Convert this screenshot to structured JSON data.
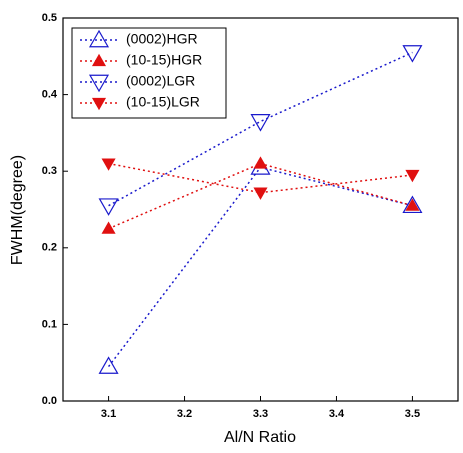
{
  "chart_data": {
    "type": "line",
    "x_label": "Al/N Ratio",
    "y_label": "FWHM(degree)",
    "x": [
      3.1,
      3.3,
      3.5
    ],
    "xlim": [
      3.04,
      3.56
    ],
    "ylim": [
      0,
      0.5
    ],
    "xticks": [
      3.1,
      3.2,
      3.3,
      3.4,
      3.5
    ],
    "yticks": [
      {
        "value": 0,
        "label": "0.0"
      },
      0.1,
      0.2,
      0.3,
      0.4,
      0.5
    ],
    "legend": "upper-left",
    "series": [
      {
        "name": "(0002)HGR",
        "color": "#1a1acc",
        "marker": "triangle-up",
        "filled": false,
        "values": [
          0.045,
          0.305,
          0.255
        ]
      },
      {
        "name": "(10-15)HGR",
        "color": "#e01010",
        "marker": "triangle-up",
        "filled": true,
        "values": [
          0.225,
          0.31,
          0.255
        ]
      },
      {
        "name": "(0002)LGR",
        "color": "#1a1acc",
        "marker": "triangle-down",
        "filled": false,
        "values": [
          0.255,
          0.365,
          0.455
        ]
      },
      {
        "name": "(10-15)LGR",
        "color": "#e01010",
        "marker": "triangle-down",
        "filled": true,
        "values": [
          0.31,
          0.272,
          0.295
        ]
      }
    ]
  }
}
